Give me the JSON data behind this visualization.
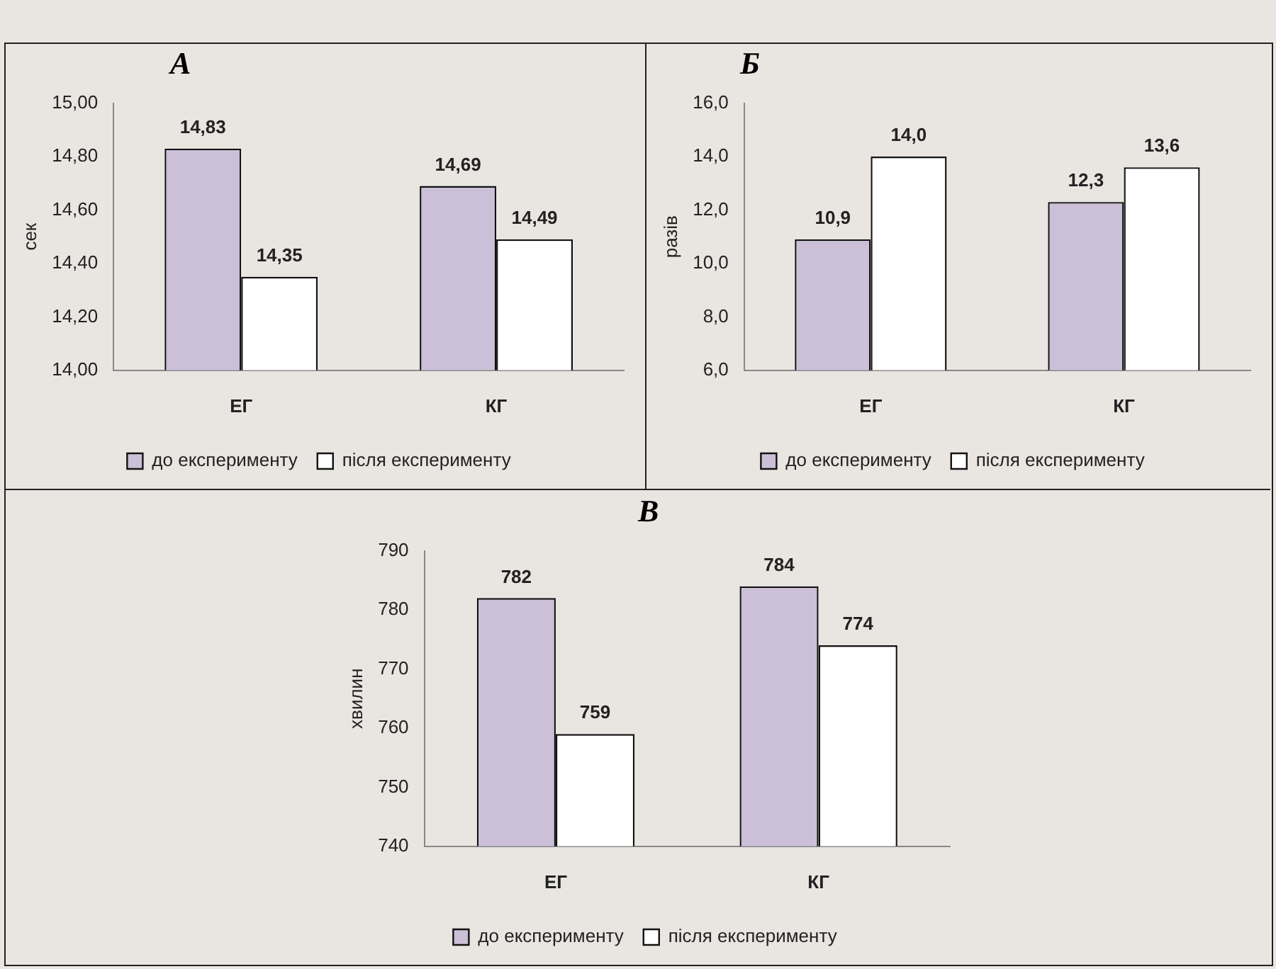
{
  "chart_data": [
    {
      "type": "bar",
      "title": "А",
      "ylabel": "сек",
      "categories": [
        "ЕГ",
        "КГ"
      ],
      "series": [
        {
          "name": "до експерименту",
          "color": "#cbc0d8",
          "values": [
            14.83,
            14.69
          ],
          "value_labels": [
            "14,83",
            "14,69"
          ]
        },
        {
          "name": "після експерименту",
          "color": "#ffffff",
          "values": [
            14.35,
            14.49
          ],
          "value_labels": [
            "14,35",
            "14,49"
          ]
        }
      ],
      "ylim": [
        14,
        15
      ],
      "yticks": [
        {
          "value": 14,
          "label": "14,00"
        },
        {
          "value": 14.2,
          "label": "14,20"
        },
        {
          "value": 14.4,
          "label": "14,40"
        },
        {
          "value": 14.6,
          "label": "14,60"
        },
        {
          "value": 14.8,
          "label": "14,80"
        },
        {
          "value": 15,
          "label": "15,00"
        }
      ],
      "grid": false,
      "legend": "bottom"
    },
    {
      "type": "bar",
      "title": "Б",
      "ylabel": "разів",
      "categories": [
        "ЕГ",
        "КГ"
      ],
      "series": [
        {
          "name": "до експерименту",
          "color": "#cbc0d8",
          "values": [
            10.9,
            12.3
          ],
          "value_labels": [
            "10,9",
            "12,3"
          ]
        },
        {
          "name": "після експерименту",
          "color": "#ffffff",
          "values": [
            14.0,
            13.6
          ],
          "value_labels": [
            "14,0",
            "13,6"
          ]
        }
      ],
      "ylim": [
        6,
        16
      ],
      "yticks": [
        {
          "value": 6,
          "label": "6,0"
        },
        {
          "value": 8,
          "label": "8,0"
        },
        {
          "value": 10,
          "label": "10,0"
        },
        {
          "value": 12,
          "label": "12,0"
        },
        {
          "value": 14,
          "label": "14,0"
        },
        {
          "value": 16,
          "label": "16,0"
        }
      ],
      "grid": false,
      "legend": "bottom"
    },
    {
      "type": "bar",
      "title": "В",
      "ylabel": "хвилин",
      "categories": [
        "ЕГ",
        "КГ"
      ],
      "series": [
        {
          "name": "до експерименту",
          "color": "#cbc0d8",
          "values": [
            782,
            784
          ],
          "value_labels": [
            "782",
            "784"
          ]
        },
        {
          "name": "після експерименту",
          "color": "#ffffff",
          "values": [
            759,
            774
          ],
          "value_labels": [
            "759",
            "774"
          ]
        }
      ],
      "ylim": [
        740,
        790
      ],
      "yticks": [
        740,
        750,
        760,
        770,
        780,
        790
      ],
      "grid": false,
      "legend": "bottom"
    }
  ]
}
